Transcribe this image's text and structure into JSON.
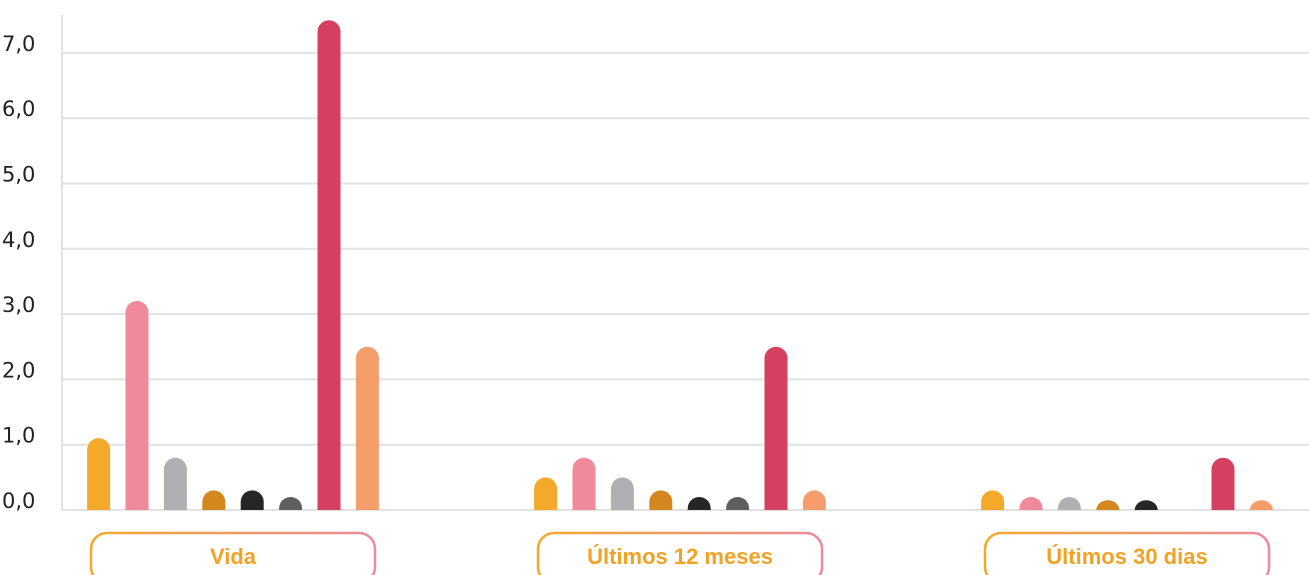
{
  "chart_data": {
    "type": "bar",
    "categories": [
      "Vida",
      "Últimos 12 meses",
      "Últimos 30 dias"
    ],
    "series": [
      {
        "color": "#f4a92a",
        "values": [
          1.1,
          0.5,
          0.3
        ]
      },
      {
        "color": "#f08a9a",
        "values": [
          3.2,
          0.8,
          0.2
        ]
      },
      {
        "color": "#b0afb4",
        "values": [
          0.8,
          0.5,
          0.2
        ]
      },
      {
        "color": "#d4861f",
        "values": [
          0.3,
          0.3,
          0.15
        ]
      },
      {
        "color": "#262626",
        "values": [
          0.3,
          0.2,
          0.15
        ]
      },
      {
        "color": "#5e5e5e",
        "values": [
          0.2,
          0.2,
          0
        ]
      },
      {
        "color": "#d64060",
        "values": [
          7.5,
          2.5,
          0.8
        ]
      },
      {
        "color": "#f59e6c",
        "values": [
          2.5,
          0.3,
          0.15
        ]
      }
    ],
    "ylim": [
      0,
      7.8
    ],
    "yticks": [
      {
        "value": 0,
        "label": "0,0"
      },
      {
        "value": 1,
        "label": "1,0"
      },
      {
        "value": 2,
        "label": "2,0"
      },
      {
        "value": 3,
        "label": "3,0"
      },
      {
        "value": 4,
        "label": "4,0"
      },
      {
        "value": 5,
        "label": "5,0"
      },
      {
        "value": 6,
        "label": "6,0"
      },
      {
        "value": 7,
        "label": "7,0"
      }
    ],
    "grid": true
  }
}
